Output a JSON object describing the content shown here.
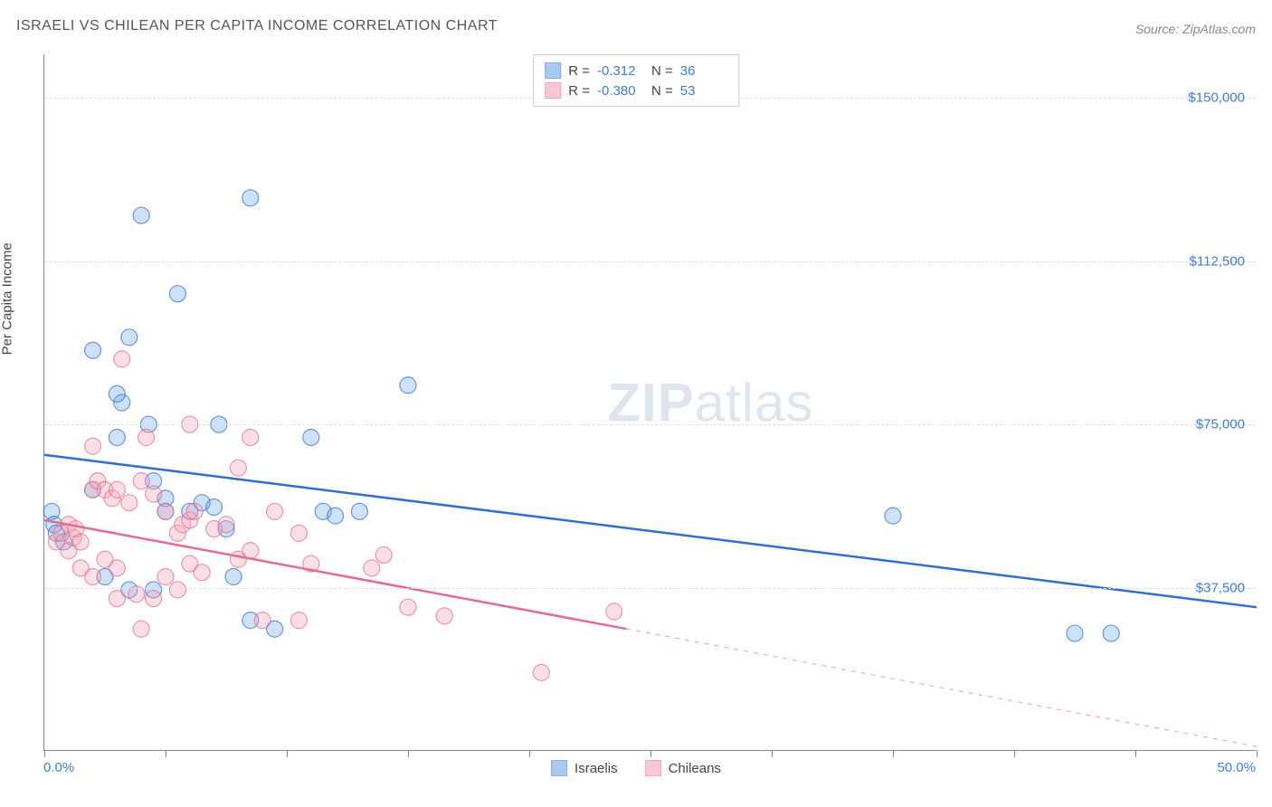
{
  "title": "ISRAELI VS CHILEAN PER CAPITA INCOME CORRELATION CHART",
  "source": "Source: ZipAtlas.com",
  "y_axis_label": "Per Capita Income",
  "watermark": {
    "bold": "ZIP",
    "light": "atlas"
  },
  "chart": {
    "type": "scatter",
    "background_color": "#ffffff",
    "grid_color": "#dddddd",
    "axis_color": "#888888",
    "tick_label_color": "#3b7dd8",
    "x_range": [
      0,
      50
    ],
    "y_range": [
      0,
      160000
    ],
    "x_ticks": [
      0,
      5,
      10,
      15,
      20,
      25,
      30,
      35,
      40,
      45,
      50
    ],
    "x_tick_labels": {
      "left": "0.0%",
      "right": "50.0%"
    },
    "y_gridlines": [
      {
        "value": 37500,
        "label": "$37,500"
      },
      {
        "value": 75000,
        "label": "$75,000"
      },
      {
        "value": 112500,
        "label": "$112,500"
      },
      {
        "value": 150000,
        "label": "$150,000"
      }
    ],
    "marker_radius": 9,
    "marker_fill_opacity": 0.35,
    "marker_stroke_width": 1.2,
    "line_width": 2.5,
    "series": [
      {
        "name": "Israelis",
        "color": "#6fa8e8",
        "line_color": "#2e6fd6",
        "r_value": "-0.312",
        "n_value": "36",
        "trend": {
          "x1": 0,
          "y1": 68000,
          "x2": 50,
          "y2": 33000,
          "solid_until_x": 50
        },
        "points": [
          [
            0.3,
            55000
          ],
          [
            0.4,
            52000
          ],
          [
            0.5,
            50000
          ],
          [
            0.8,
            48000
          ],
          [
            2.0,
            92000
          ],
          [
            3.0,
            72000
          ],
          [
            3.5,
            95000
          ],
          [
            3.2,
            80000
          ],
          [
            4.0,
            123000
          ],
          [
            5.0,
            58000
          ],
          [
            4.3,
            75000
          ],
          [
            4.5,
            62000
          ],
          [
            5.0,
            55000
          ],
          [
            2.5,
            40000
          ],
          [
            3.5,
            37000
          ],
          [
            5.5,
            105000
          ],
          [
            3.0,
            82000
          ],
          [
            6.5,
            57000
          ],
          [
            7.0,
            56000
          ],
          [
            7.2,
            75000
          ],
          [
            7.5,
            51000
          ],
          [
            4.5,
            37000
          ],
          [
            6.0,
            55000
          ],
          [
            7.8,
            40000
          ],
          [
            8.5,
            127000
          ],
          [
            9.5,
            28000
          ],
          [
            11.0,
            72000
          ],
          [
            11.5,
            55000
          ],
          [
            12.0,
            54000
          ],
          [
            13.0,
            55000
          ],
          [
            15.0,
            84000
          ],
          [
            35.0,
            54000
          ],
          [
            42.5,
            27000
          ],
          [
            44.0,
            27000
          ],
          [
            8.5,
            30000
          ],
          [
            2.0,
            60000
          ]
        ]
      },
      {
        "name": "Chileans",
        "color": "#f2a5b8",
        "line_color": "#e86a8a",
        "r_value": "-0.380",
        "n_value": "53",
        "trend": {
          "x1": 0,
          "y1": 53000,
          "x2": 50,
          "y2": 1000,
          "solid_until_x": 24
        },
        "points": [
          [
            0.5,
            48000
          ],
          [
            0.7,
            50000
          ],
          [
            1.0,
            46000
          ],
          [
            1.2,
            49000
          ],
          [
            1.0,
            52000
          ],
          [
            1.3,
            51000
          ],
          [
            1.5,
            48000
          ],
          [
            2.0,
            60000
          ],
          [
            2.2,
            62000
          ],
          [
            2.0,
            70000
          ],
          [
            2.5,
            60000
          ],
          [
            2.8,
            58000
          ],
          [
            1.5,
            42000
          ],
          [
            2.0,
            40000
          ],
          [
            2.5,
            44000
          ],
          [
            3.0,
            42000
          ],
          [
            3.0,
            60000
          ],
          [
            3.5,
            57000
          ],
          [
            3.2,
            90000
          ],
          [
            4.2,
            72000
          ],
          [
            3.0,
            35000
          ],
          [
            3.8,
            36000
          ],
          [
            4.5,
            35000
          ],
          [
            4.0,
            62000
          ],
          [
            4.5,
            59000
          ],
          [
            5.0,
            55000
          ],
          [
            5.5,
            50000
          ],
          [
            5.7,
            52000
          ],
          [
            6.0,
            53000
          ],
          [
            6.2,
            55000
          ],
          [
            5.0,
            40000
          ],
          [
            6.0,
            43000
          ],
          [
            6.5,
            41000
          ],
          [
            6.0,
            75000
          ],
          [
            7.0,
            51000
          ],
          [
            7.5,
            52000
          ],
          [
            8.0,
            44000
          ],
          [
            8.5,
            46000
          ],
          [
            8.0,
            65000
          ],
          [
            8.5,
            72000
          ],
          [
            4.0,
            28000
          ],
          [
            9.0,
            30000
          ],
          [
            9.5,
            55000
          ],
          [
            10.5,
            30000
          ],
          [
            10.5,
            50000
          ],
          [
            11.0,
            43000
          ],
          [
            13.5,
            42000
          ],
          [
            14.0,
            45000
          ],
          [
            15.0,
            33000
          ],
          [
            16.5,
            31000
          ],
          [
            20.5,
            18000
          ],
          [
            23.5,
            32000
          ],
          [
            5.5,
            37000
          ]
        ]
      }
    ]
  },
  "stats_labels": {
    "r": "R =",
    "n": "N ="
  },
  "legend": {
    "items": [
      {
        "label": "Israelis",
        "color": "#6fa8e8",
        "border": "#3b7dd8"
      },
      {
        "label": "Chileans",
        "color": "#f2a5b8",
        "border": "#e86a8a"
      }
    ]
  }
}
